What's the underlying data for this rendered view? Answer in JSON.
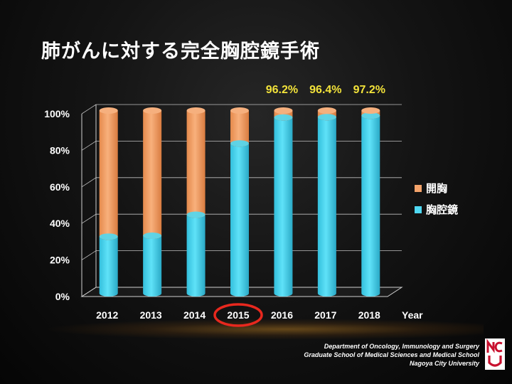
{
  "slide": {
    "title": "肺がんに対する完全胸腔鏡手術",
    "footer": {
      "line1": "Department of Oncology, Immunology and Surgery",
      "line2": "Graduate School of Medical Sciences and Medical School",
      "line3": "Nagoya City University"
    },
    "logo_text": "NCU",
    "highlight_category": "2015",
    "colors": {
      "open": "#f4a36a",
      "vats": "#4fd8f2",
      "annotation": "#f2e23a",
      "highlight_ring": "#e8281e"
    }
  },
  "chart_data": {
    "type": "bar",
    "stacked": true,
    "percent": true,
    "categories": [
      "2012",
      "2013",
      "2014",
      "2015",
      "2016",
      "2017",
      "2018"
    ],
    "series": [
      {
        "name": "胸腔鏡",
        "values": [
          31,
          31.5,
          43,
          82,
          96.2,
          96.4,
          97.2
        ]
      },
      {
        "name": "開胸",
        "values": [
          69,
          68.5,
          57,
          18,
          3.8,
          3.6,
          2.8
        ]
      }
    ],
    "annotations": [
      {
        "category": "2016",
        "text": "96.2%"
      },
      {
        "category": "2017",
        "text": "96.4%"
      },
      {
        "category": "2018",
        "text": "97.2%"
      }
    ],
    "ylim": [
      0,
      100
    ],
    "yticks": [
      "0%",
      "20%",
      "40%",
      "60%",
      "80%",
      "100%"
    ],
    "xlabel": "Year",
    "ylabel": "",
    "legend_position": "right",
    "grid": true
  }
}
